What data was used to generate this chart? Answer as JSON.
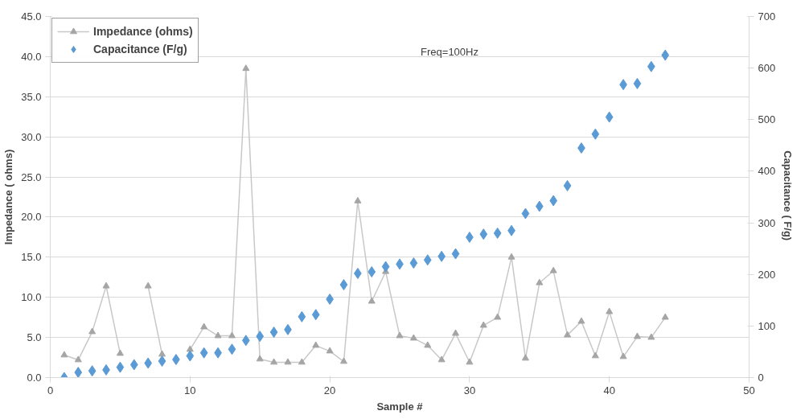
{
  "chart_data": {
    "type": "line",
    "xlabel": "Sample #",
    "ylabel": "Impedance ( ohms)",
    "y2label": "Capacitance  ( F/g)",
    "x": [
      1,
      2,
      3,
      4,
      5,
      6,
      7,
      8,
      9,
      10,
      11,
      12,
      13,
      14,
      15,
      16,
      17,
      18,
      19,
      20,
      21,
      22,
      23,
      24,
      25,
      26,
      27,
      28,
      29,
      30,
      31,
      32,
      33,
      34,
      35,
      36,
      37,
      38,
      39,
      40,
      41,
      42,
      43,
      44
    ],
    "series": [
      {
        "name": "Impedance (ohms)",
        "marker": "triangle",
        "color": "#a5a5a5",
        "values": [
          2.8,
          2.2,
          5.7,
          11.4,
          3.0,
          null,
          11.4,
          2.9,
          null,
          3.5,
          6.3,
          5.2,
          5.2,
          38.5,
          2.3,
          1.9,
          1.9,
          1.9,
          4.0,
          3.3,
          2.0,
          22.0,
          9.5,
          13.2,
          5.2,
          4.9,
          4.0,
          2.2,
          5.5,
          1.9,
          6.5,
          7.5,
          15.0,
          2.4,
          11.8,
          13.3,
          5.3,
          7.0,
          2.7,
          8.2,
          2.6,
          5.1,
          5.0,
          7.5
        ]
      },
      {
        "name": "Capacitance (F/g)",
        "type": "scatter",
        "marker": "diamond",
        "axis": "y2",
        "color": "#5b9bd5",
        "values": [
          0,
          10,
          13,
          15,
          20,
          25,
          28,
          32,
          35,
          42,
          48,
          48,
          55,
          72,
          80,
          88,
          93,
          118,
          122,
          152,
          180,
          202,
          205,
          215,
          220,
          222,
          228,
          235,
          240,
          272,
          278,
          280,
          285,
          318,
          332,
          343,
          372,
          445,
          472,
          505,
          568,
          570,
          603,
          625
        ]
      }
    ],
    "xlim": [
      0,
      50
    ],
    "xticks": [
      0,
      10,
      20,
      30,
      40,
      50
    ],
    "ylim": [
      0,
      45
    ],
    "yticks": [
      {
        "value": 0,
        "label": "0.0"
      },
      {
        "value": 5,
        "label": "5.0"
      },
      {
        "value": 10,
        "label": "10.0"
      },
      {
        "value": 15,
        "label": "15.0"
      },
      {
        "value": 20,
        "label": "20.0"
      },
      {
        "value": 25,
        "label": "25.0"
      },
      {
        "value": 30,
        "label": "30.0"
      },
      {
        "value": 35,
        "label": "35.0"
      },
      {
        "value": 40,
        "label": "40.0"
      },
      {
        "value": 45,
        "label": "45.0"
      }
    ],
    "y2lim": [
      0,
      700
    ],
    "y2ticks": [
      0,
      100,
      200,
      300,
      400,
      500,
      600,
      700
    ],
    "annotations": [
      "Freq=100Hz"
    ],
    "grid": "y",
    "legend": "top left"
  }
}
